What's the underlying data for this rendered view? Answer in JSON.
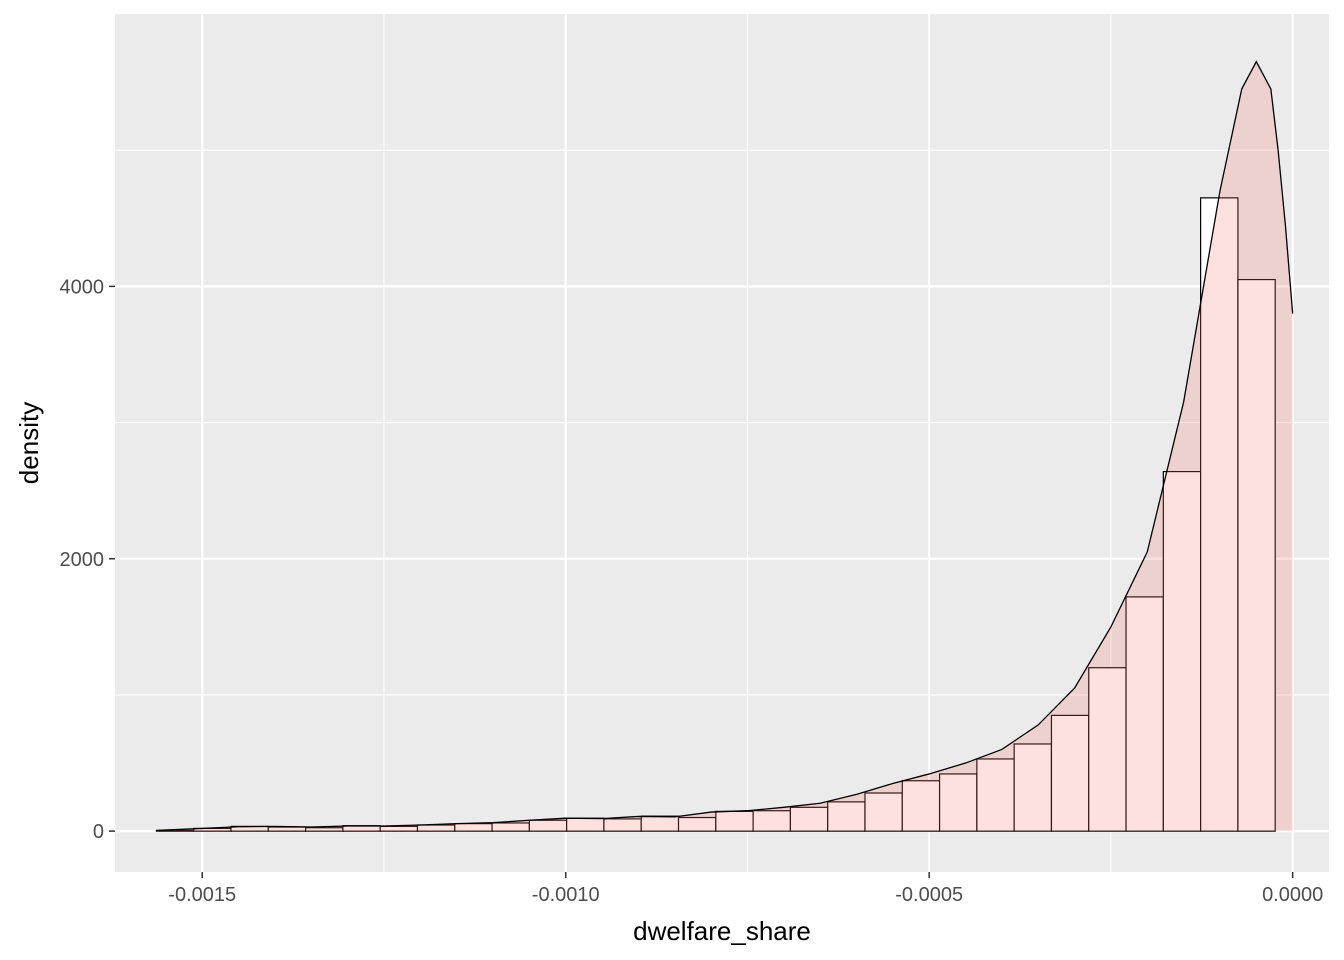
{
  "chart_data": {
    "type": "bar",
    "title": "",
    "xlabel": "dwelfare_share",
    "ylabel": "density",
    "xlim": [
      -0.00162,
      5e-05
    ],
    "ylim": [
      -300,
      6000
    ],
    "x_ticks": [
      -0.0015,
      -0.001,
      -0.0005,
      0
    ],
    "x_tick_labels": [
      "-0.0015",
      "-0.0010",
      "-0.0005",
      "0.0000"
    ],
    "y_ticks": [
      0,
      2000,
      4000
    ],
    "y_tick_labels": [
      "0",
      "2000",
      "4000"
    ],
    "x_minor": [
      -0.00125,
      -0.00075,
      -0.00025
    ],
    "y_minor": [
      1000,
      3000,
      5000
    ],
    "grid": true,
    "panel_background": "#ebebeb",
    "grid_color": "#ffffff",
    "histogram": {
      "bin_width": 5.13e-05,
      "bin_starts": [
        -0.001563,
        -0.0015117,
        -0.0014604,
        -0.0014091,
        -0.0013578,
        -0.0013065,
        -0.0012552,
        -0.0012039,
        -0.0011526,
        -0.0011013,
        -0.00105,
        -0.0009987,
        -0.0009474,
        -0.0008961,
        -0.0008448,
        -0.0007935,
        -0.0007422,
        -0.0006909,
        -0.0006396,
        -0.0005883,
        -0.000537,
        -0.0004857,
        -0.0004344,
        -0.0003831,
        -0.0003318,
        -0.0002805,
        -0.0002292,
        -0.0001779,
        -0.0001266,
        -7.53e-05,
        -2.4e-05
      ],
      "values": [
        5,
        20,
        35,
        30,
        25,
        40,
        35,
        45,
        55,
        60,
        80,
        95,
        90,
        110,
        100,
        145,
        150,
        175,
        215,
        280,
        370,
        420,
        530,
        640,
        850,
        1200,
        1720,
        2640,
        4650,
        4050
      ],
      "fill": "#ffffff",
      "outline": "#000000"
    },
    "density": {
      "x": [
        -0.001563,
        -0.0015,
        -0.00145,
        -0.0014,
        -0.00135,
        -0.0013,
        -0.00125,
        -0.0012,
        -0.00115,
        -0.0011,
        -0.00105,
        -0.001,
        -0.00095,
        -0.0009,
        -0.00085,
        -0.0008,
        -0.00075,
        -0.0007,
        -0.00065,
        -0.0006,
        -0.00055,
        -0.0005,
        -0.00045,
        -0.0004,
        -0.00035,
        -0.0003,
        -0.00025,
        -0.0002,
        -0.00015,
        -0.0001,
        -7e-05,
        -5e-05,
        -3e-05,
        -2e-05,
        -1e-05,
        0
      ],
      "y": [
        5,
        20,
        32,
        35,
        30,
        38,
        38,
        45,
        55,
        62,
        80,
        95,
        92,
        108,
        105,
        140,
        150,
        175,
        205,
        270,
        350,
        420,
        500,
        600,
        780,
        1050,
        1500,
        2050,
        3150,
        4700,
        5450,
        5650,
        5450,
        5000,
        4450,
        3800
      ],
      "fill": "#f8766d",
      "fill_alpha": 0.22,
      "line": "#000000"
    }
  }
}
